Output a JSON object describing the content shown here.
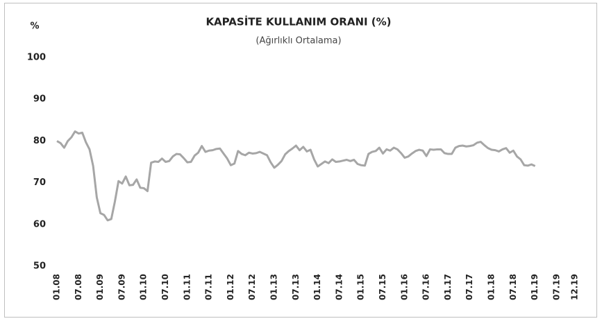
{
  "chart_data": {
    "type": "line",
    "title": "KAPASİTE KULLANIM ORANI (%)",
    "subtitle": "(Ağırlıklı Ortalama)",
    "y_label": "%",
    "categories": [
      "01.08",
      null,
      null,
      null,
      null,
      null,
      "07.08",
      null,
      null,
      null,
      null,
      null,
      "01.09",
      null,
      null,
      null,
      null,
      null,
      "07.09",
      null,
      null,
      null,
      null,
      null,
      "01.10",
      null,
      null,
      null,
      null,
      null,
      "07.10",
      null,
      null,
      null,
      null,
      null,
      "01.11",
      null,
      null,
      null,
      null,
      null,
      "07.11",
      null,
      null,
      null,
      null,
      null,
      "01.12",
      null,
      null,
      null,
      null,
      null,
      "07.12",
      null,
      null,
      null,
      null,
      null,
      "01.13",
      null,
      null,
      null,
      null,
      null,
      "07.13",
      null,
      null,
      null,
      null,
      null,
      "01.14",
      null,
      null,
      null,
      null,
      null,
      "07.14",
      null,
      null,
      null,
      null,
      null,
      "01.15",
      null,
      null,
      null,
      null,
      null,
      "07.15",
      null,
      null,
      null,
      null,
      null,
      "01.16",
      null,
      null,
      null,
      null,
      null,
      "07.16",
      null,
      null,
      null,
      null,
      null,
      "01.17",
      null,
      null,
      null,
      null,
      null,
      "07.17",
      null,
      null,
      null,
      null,
      null,
      "01.18",
      null,
      null,
      null,
      null,
      null,
      "07.18",
      null,
      null,
      null,
      null,
      null,
      "01.19",
      null,
      null,
      null,
      null,
      null,
      "07.19",
      null,
      null,
      null,
      null,
      "12.19"
    ],
    "series": [
      {
        "color": "#a6a6a6",
        "values": [
          80.0,
          79.5,
          78.4,
          80.0,
          80.9,
          82.3,
          81.8,
          82.0,
          79.7,
          78.0,
          74.0,
          66.5,
          62.7,
          62.3,
          61.0,
          61.3,
          65.5,
          70.4,
          69.8,
          71.5,
          69.4,
          69.5,
          70.8,
          68.8,
          68.7,
          68.0,
          74.8,
          75.1,
          75.0,
          75.8,
          75.0,
          75.2,
          76.3,
          76.9,
          76.8,
          75.9,
          74.9,
          75.0,
          76.5,
          77.2,
          78.8,
          77.4,
          77.7,
          77.8,
          78.1,
          78.2,
          77.0,
          75.8,
          74.2,
          74.6,
          77.6,
          76.9,
          76.6,
          77.2,
          77.0,
          77.1,
          77.4,
          77.0,
          76.6,
          74.9,
          73.6,
          74.3,
          75.2,
          76.8,
          77.6,
          78.2,
          78.9,
          77.8,
          78.6,
          77.5,
          77.9,
          75.6,
          73.9,
          74.5,
          75.1,
          74.7,
          75.6,
          75.0,
          75.1,
          75.3,
          75.5,
          75.2,
          75.5,
          74.5,
          74.2,
          74.1,
          76.9,
          77.4,
          77.6,
          78.4,
          77.0,
          78.0,
          77.7,
          78.4,
          78.0,
          77.1,
          76.0,
          76.3,
          77.0,
          77.6,
          77.9,
          77.7,
          76.4,
          78.0,
          77.9,
          78.0,
          78.0,
          77.1,
          76.9,
          76.9,
          78.4,
          78.8,
          78.9,
          78.7,
          78.8,
          79.0,
          79.6,
          79.8,
          79.0,
          78.3,
          77.9,
          77.8,
          77.5,
          78.0,
          78.3,
          77.2,
          77.7,
          76.3,
          75.6,
          74.2,
          74.1,
          74.4,
          74.0,
          null,
          null,
          null,
          null,
          null,
          null,
          null,
          null,
          null,
          null,
          null
        ]
      }
    ],
    "ylim": [
      50,
      100
    ],
    "yticks": [
      50,
      60,
      70,
      80,
      90,
      100
    ],
    "grid": false
  }
}
